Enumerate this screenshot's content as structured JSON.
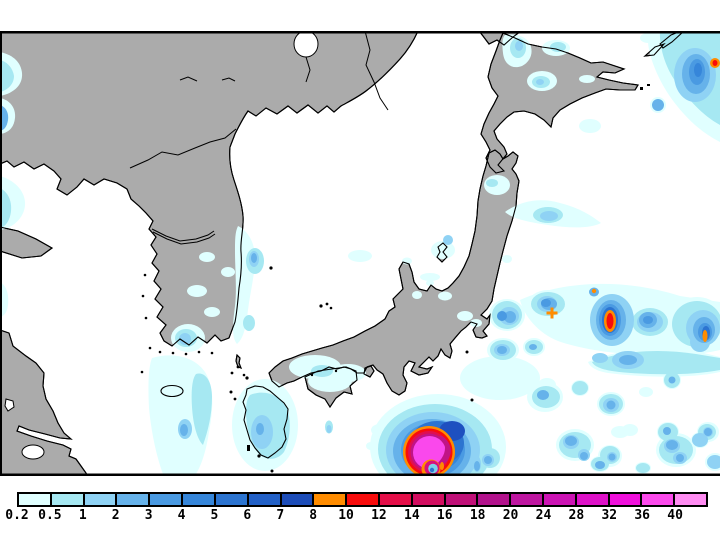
{
  "legend": {
    "tick_labels": [
      "0.2",
      "0.5",
      "1",
      "2",
      "3",
      "4",
      "5",
      "6",
      "7",
      "8",
      "10",
      "12",
      "14",
      "16",
      "18",
      "20",
      "24",
      "28",
      "32",
      "36",
      "40"
    ],
    "segment_colors": [
      "#E0FFFF",
      "#A6E8F2",
      "#8FD2F4",
      "#66B2EA",
      "#4A9AE2",
      "#3686DA",
      "#2C74D0",
      "#2260C6",
      "#1C4CB8",
      "#FF8C00",
      "#F80C0C",
      "#E40E48",
      "#D20E60",
      "#C01078",
      "#B2128C",
      "#BE16A0",
      "#CC14B4",
      "#DE12C8",
      "#F010DC",
      "#FC4AEC",
      "#FF8CF2"
    ]
  },
  "map": {
    "land_color": "#ABABAB",
    "sea_color": "#FFFFFF",
    "coastline_color": "#000000",
    "frame_color": "#000000",
    "features": [
      "typhoon-like heavy precipitation system at bottom center",
      "intense convective cell east of Honshu",
      "precipitation band northeast of Kuril Islands"
    ]
  },
  "chart_data": {
    "type": "heatmap",
    "title": "",
    "legend_boundaries": [
      0.2,
      0.5,
      1,
      2,
      3,
      4,
      5,
      6,
      7,
      8,
      10,
      12,
      14,
      16,
      18,
      20,
      24,
      28,
      32,
      36,
      40
    ],
    "palette": [
      "#E0FFFF",
      "#A6E8F2",
      "#8FD2F4",
      "#66B2EA",
      "#4A9AE2",
      "#3686DA",
      "#2C74D0",
      "#2260C6",
      "#1C4CB8",
      "#FF8C00",
      "#F80C0C",
      "#E40E48",
      "#D20E60",
      "#C01078",
      "#B2128C",
      "#BE16A0",
      "#CC14B4",
      "#DE12C8",
      "#F010DC",
      "#FC4AEC",
      "#FF8CF2"
    ],
    "legend_position": "bottom"
  }
}
